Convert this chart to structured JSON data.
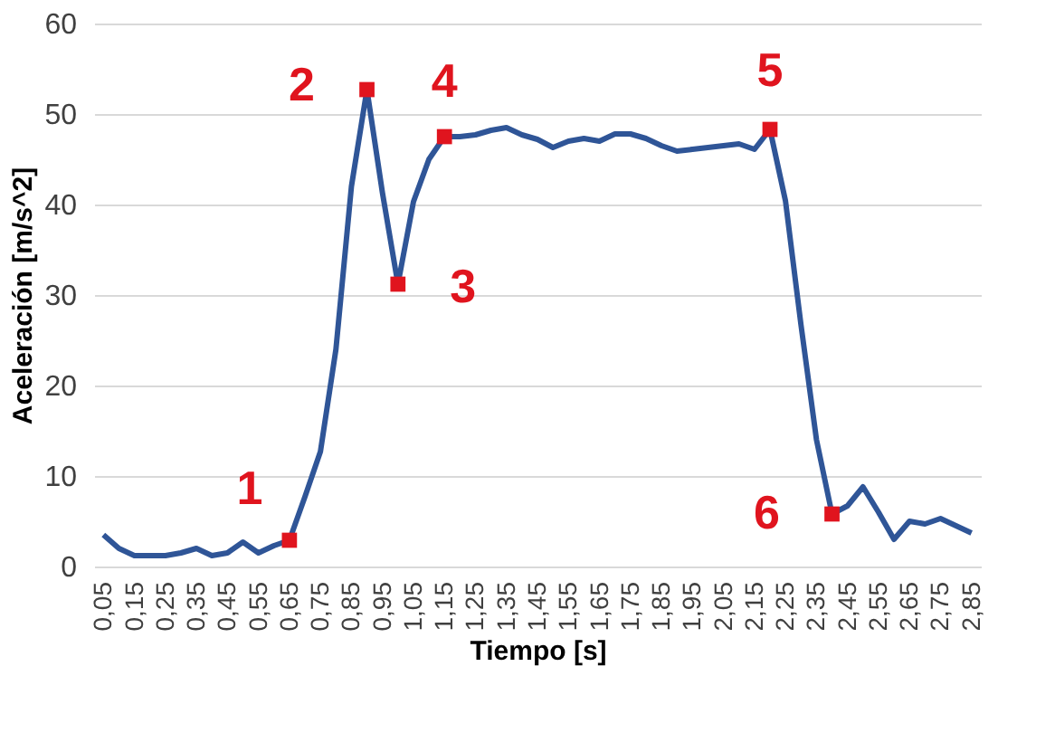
{
  "chart_data": {
    "type": "line",
    "xlabel": "Tiempo [s]",
    "ylabel": "Aceleración [m/s^2]",
    "x": [
      0.05,
      0.1,
      0.15,
      0.2,
      0.25,
      0.3,
      0.35,
      0.4,
      0.45,
      0.5,
      0.55,
      0.6,
      0.65,
      0.7,
      0.75,
      0.8,
      0.85,
      0.9,
      0.95,
      1.0,
      1.05,
      1.1,
      1.15,
      1.2,
      1.25,
      1.3,
      1.35,
      1.4,
      1.45,
      1.5,
      1.55,
      1.6,
      1.65,
      1.7,
      1.75,
      1.8,
      1.85,
      1.9,
      1.95,
      2.0,
      2.05,
      2.1,
      2.15,
      2.2,
      2.25,
      2.3,
      2.35,
      2.4,
      2.45,
      2.5,
      2.55,
      2.6,
      2.65,
      2.7,
      2.75,
      2.8,
      2.85
    ],
    "series": [
      {
        "color": "#2f5597",
        "values": [
          3.5,
          2,
          1.2,
          1.2,
          1.2,
          1.5,
          2,
          1.2,
          1.5,
          2.7,
          1.5,
          2.3,
          2.9,
          7.7,
          12.7,
          24,
          42,
          52.7,
          41.3,
          31.2,
          40.3,
          45,
          47.5,
          47.5,
          47.7,
          48.2,
          48.5,
          47.7,
          47.2,
          46.3,
          47,
          47.3,
          47,
          47.8,
          47.8,
          47.3,
          46.5,
          45.9,
          46.1,
          46.3,
          46.5,
          46.7,
          46.1,
          48.3,
          40.4,
          26.7,
          14,
          5.8,
          6.7,
          8.8,
          6,
          3,
          5,
          4.7,
          5.3,
          4.5,
          3.7
        ]
      }
    ],
    "xlim": [
      0.02,
      2.88
    ],
    "xticks": [
      {
        "value": 0.05,
        "label": "0,05"
      },
      {
        "value": 0.15,
        "label": "0,15"
      },
      {
        "value": 0.25,
        "label": "0,25"
      },
      {
        "value": 0.35,
        "label": "0,35"
      },
      {
        "value": 0.45,
        "label": "0,45"
      },
      {
        "value": 0.55,
        "label": "0,55"
      },
      {
        "value": 0.65,
        "label": "0,65"
      },
      {
        "value": 0.75,
        "label": "0,75"
      },
      {
        "value": 0.85,
        "label": "0,85"
      },
      {
        "value": 0.95,
        "label": "0,95"
      },
      {
        "value": 1.05,
        "label": "1,05"
      },
      {
        "value": 1.15,
        "label": "1,15"
      },
      {
        "value": 1.25,
        "label": "1,25"
      },
      {
        "value": 1.35,
        "label": "1,35"
      },
      {
        "value": 1.45,
        "label": "1,45"
      },
      {
        "value": 1.55,
        "label": "1,55"
      },
      {
        "value": 1.65,
        "label": "1,65"
      },
      {
        "value": 1.75,
        "label": "1,75"
      },
      {
        "value": 1.85,
        "label": "1,85"
      },
      {
        "value": 1.95,
        "label": "1,95"
      },
      {
        "value": 2.05,
        "label": "2,05"
      },
      {
        "value": 2.15,
        "label": "2,15"
      },
      {
        "value": 2.25,
        "label": "2,25"
      },
      {
        "value": 2.35,
        "label": "2,35"
      },
      {
        "value": 2.45,
        "label": "2,45"
      },
      {
        "value": 2.55,
        "label": "2,55"
      },
      {
        "value": 2.65,
        "label": "2,65"
      },
      {
        "value": 2.75,
        "label": "2,75"
      },
      {
        "value": 2.85,
        "label": "2,85"
      }
    ],
    "ylim": [
      0,
      60
    ],
    "yticks": [
      0,
      10,
      20,
      30,
      40,
      50,
      60
    ],
    "grid": "y",
    "annotations": [
      {
        "text": "1",
        "x": 0.65,
        "y": 2.9
      },
      {
        "text": "2",
        "x": 0.9,
        "y": 52.7
      },
      {
        "text": "3",
        "x": 1.0,
        "y": 31.2
      },
      {
        "text": "4",
        "x": 1.15,
        "y": 47.5
      },
      {
        "text": "5",
        "x": 2.2,
        "y": 48.3
      },
      {
        "text": "6",
        "x": 2.4,
        "y": 5.8
      }
    ]
  }
}
